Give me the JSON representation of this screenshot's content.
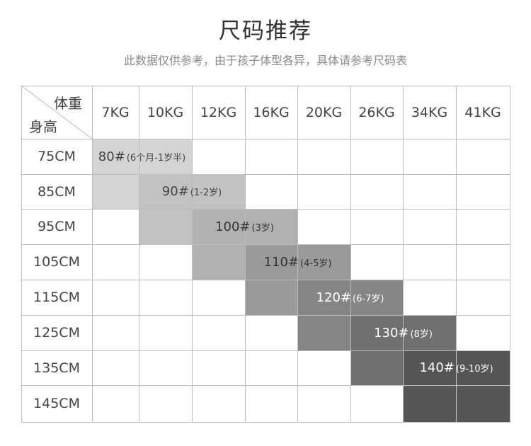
{
  "title": "尺码推荐",
  "subtitle": "此数据仅供参考，由于孩子体型各异，具体请参考尺码表",
  "table": {
    "corner": {
      "weight_label": "体重",
      "height_label": "身高"
    },
    "weights": [
      "7KG",
      "10KG",
      "12KG",
      "16KG",
      "20KG",
      "26KG",
      "34KG",
      "41KG"
    ],
    "heights": [
      "75CM",
      "85CM",
      "95CM",
      "105CM",
      "115CM",
      "125CM",
      "135CM",
      "145CM"
    ],
    "sizes": [
      {
        "size": "80#",
        "age": "(6个月-1岁半)",
        "color": "#d4d4d4",
        "text_color": "#444444"
      },
      {
        "size": "90#",
        "age": "(1-2岁)",
        "color": "#c2c2c2",
        "text_color": "#444444"
      },
      {
        "size": "100#",
        "age": "(3岁)",
        "color": "#b0b0b0",
        "text_color": "#333333"
      },
      {
        "size": "110#",
        "age": "(4-5岁)",
        "color": "#9a9a9a",
        "text_color": "#333333"
      },
      {
        "size": "120#",
        "age": "(6-7岁)",
        "color": "#858585",
        "text_color": "#ffffff"
      },
      {
        "size": "130#",
        "age": "(8岁)",
        "color": "#707070",
        "text_color": "#ffffff"
      },
      {
        "size": "140#",
        "age": "(9-10岁)",
        "color": "#555555",
        "text_color": "#ffffff"
      }
    ]
  }
}
